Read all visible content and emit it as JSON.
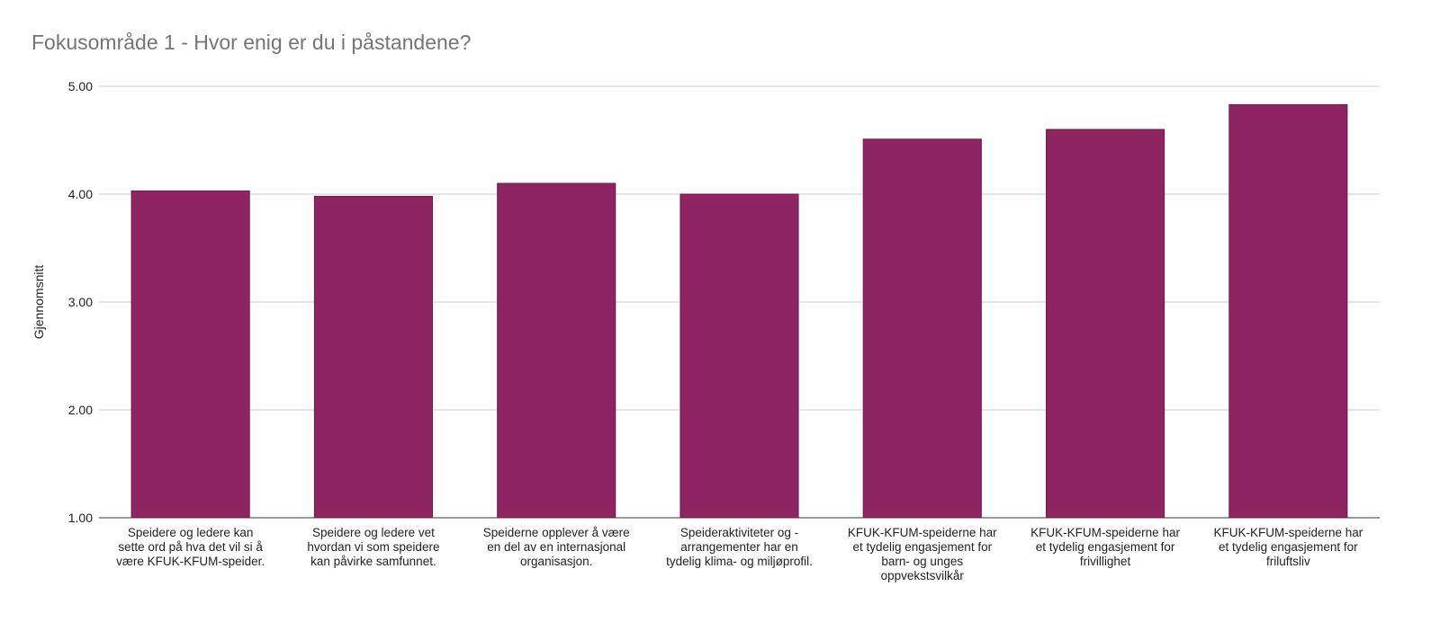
{
  "chart_data": {
    "type": "bar",
    "title": "Fokusområde 1 - Hvor enig er du i påstandene?",
    "xlabel": "",
    "ylabel": "Gjennomsnitt",
    "ylim": [
      1,
      5
    ],
    "yticks": [
      "1.00",
      "2.00",
      "3.00",
      "4.00",
      "5.00"
    ],
    "grid": true,
    "bar_color": "#8e2562",
    "categories": [
      [
        "Speidere og ledere kan",
        "sette ord på hva det vil si å",
        "være KFUK-KFUM-speider."
      ],
      [
        "Speidere og ledere vet",
        "hvordan vi som speidere",
        "kan påvirke samfunnet."
      ],
      [
        "Speiderne opplever å være",
        "en del av en internasjonal",
        "organisasjon."
      ],
      [
        "Speideraktiviteter og -",
        "arrangementer har en",
        "tydelig klima- og miljøprofil."
      ],
      [
        "KFUK-KFUM-speiderne har",
        "et tydelig engasjement for",
        "barn- og unges",
        "oppvekstsvilkår"
      ],
      [
        "KFUK-KFUM-speiderne har",
        "et tydelig engasjement for",
        "frivillighet"
      ],
      [
        "KFUK-KFUM-speiderne har",
        "et tydelig engasjement for",
        "friluftsliv"
      ]
    ],
    "values": [
      4.03,
      3.98,
      4.1,
      4.0,
      4.51,
      4.6,
      4.83
    ]
  }
}
